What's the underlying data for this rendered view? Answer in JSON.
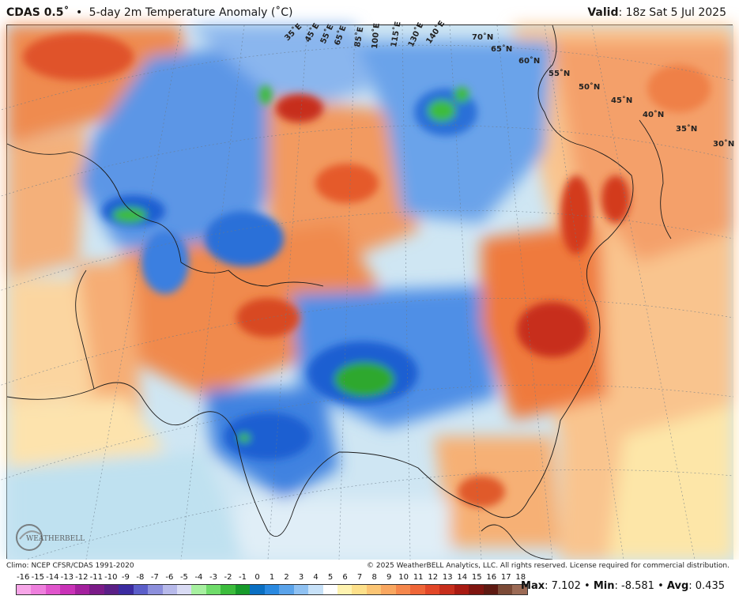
{
  "header": {
    "product": "CDAS 0.5˚",
    "bullet": "•",
    "title": "5-day 2m Temperature Anomaly (˚C)",
    "valid_label": "Valid",
    "valid_value": "18z Sat 5 Jul 2025"
  },
  "map": {
    "lat_labels": [
      "70˚N",
      "65˚N",
      "60˚N",
      "55˚N",
      "50˚N",
      "45˚N",
      "40˚N",
      "35˚N",
      "30˚N"
    ],
    "lon_labels": [
      "35˚E",
      "45˚E",
      "55˚E",
      "65˚E",
      "85˚E",
      "100˚E",
      "115˚E",
      "130˚E",
      "140˚E"
    ],
    "logo_text": "WEATHERBELL",
    "colors": {
      "ocean": "#cfe6f3",
      "strong_cold": "#1d5fd1",
      "cold": "#4f8fe6",
      "cool": "#9ec3f0",
      "extreme_cold": "#2ea82e",
      "neutral": "#fdf3c8",
      "warm": "#f7b36e",
      "hot": "#ef7a3c",
      "very_hot": "#d93b1a"
    }
  },
  "footer": {
    "climo": "Climo: NCEP CFSR/CDAS 1991-2020",
    "copyright": "© 2025 WeatherBELL Analytics, LLC. All rights reserved. License required for commercial distribution.",
    "stats": {
      "max_label": "Max",
      "max_value": ": 7.102",
      "min_label": "Min",
      "min_value": ": -8.581",
      "avg_label": "Avg",
      "avg_value": ": 0.435",
      "bullet": "•"
    }
  },
  "colorbar": {
    "ticks": [
      "-16",
      "-15",
      "-14",
      "-13",
      "-12",
      "-11",
      "-10",
      "-9",
      "-8",
      "-7",
      "-6",
      "-5",
      "-4",
      "-3",
      "-2",
      "-1",
      "0",
      "1",
      "2",
      "3",
      "4",
      "5",
      "6",
      "7",
      "8",
      "9",
      "10",
      "11",
      "12",
      "13",
      "14",
      "15",
      "16",
      "17",
      "18"
    ],
    "colors": [
      "#f7a6e8",
      "#ee7fdd",
      "#e055cc",
      "#c932b7",
      "#a3209d",
      "#7b1b88",
      "#5a1f86",
      "#3b2ba0",
      "#5b5ec9",
      "#8c8fdc",
      "#b7b9ea",
      "#d9dbf4",
      "#a7f0a0",
      "#6fdc6a",
      "#3cbc3c",
      "#179a2a",
      "#0a6fc2",
      "#2a89e0",
      "#5aa3ea",
      "#8fc1f2",
      "#c7e1f8",
      "#ffffff",
      "#fff3b0",
      "#fde08a",
      "#fbc574",
      "#f9a760",
      "#f5874c",
      "#ef6638",
      "#e24728",
      "#c72e1c",
      "#a81a12",
      "#7f1510",
      "#5e1a12",
      "#7b4a36",
      "#9b6a55"
    ]
  }
}
